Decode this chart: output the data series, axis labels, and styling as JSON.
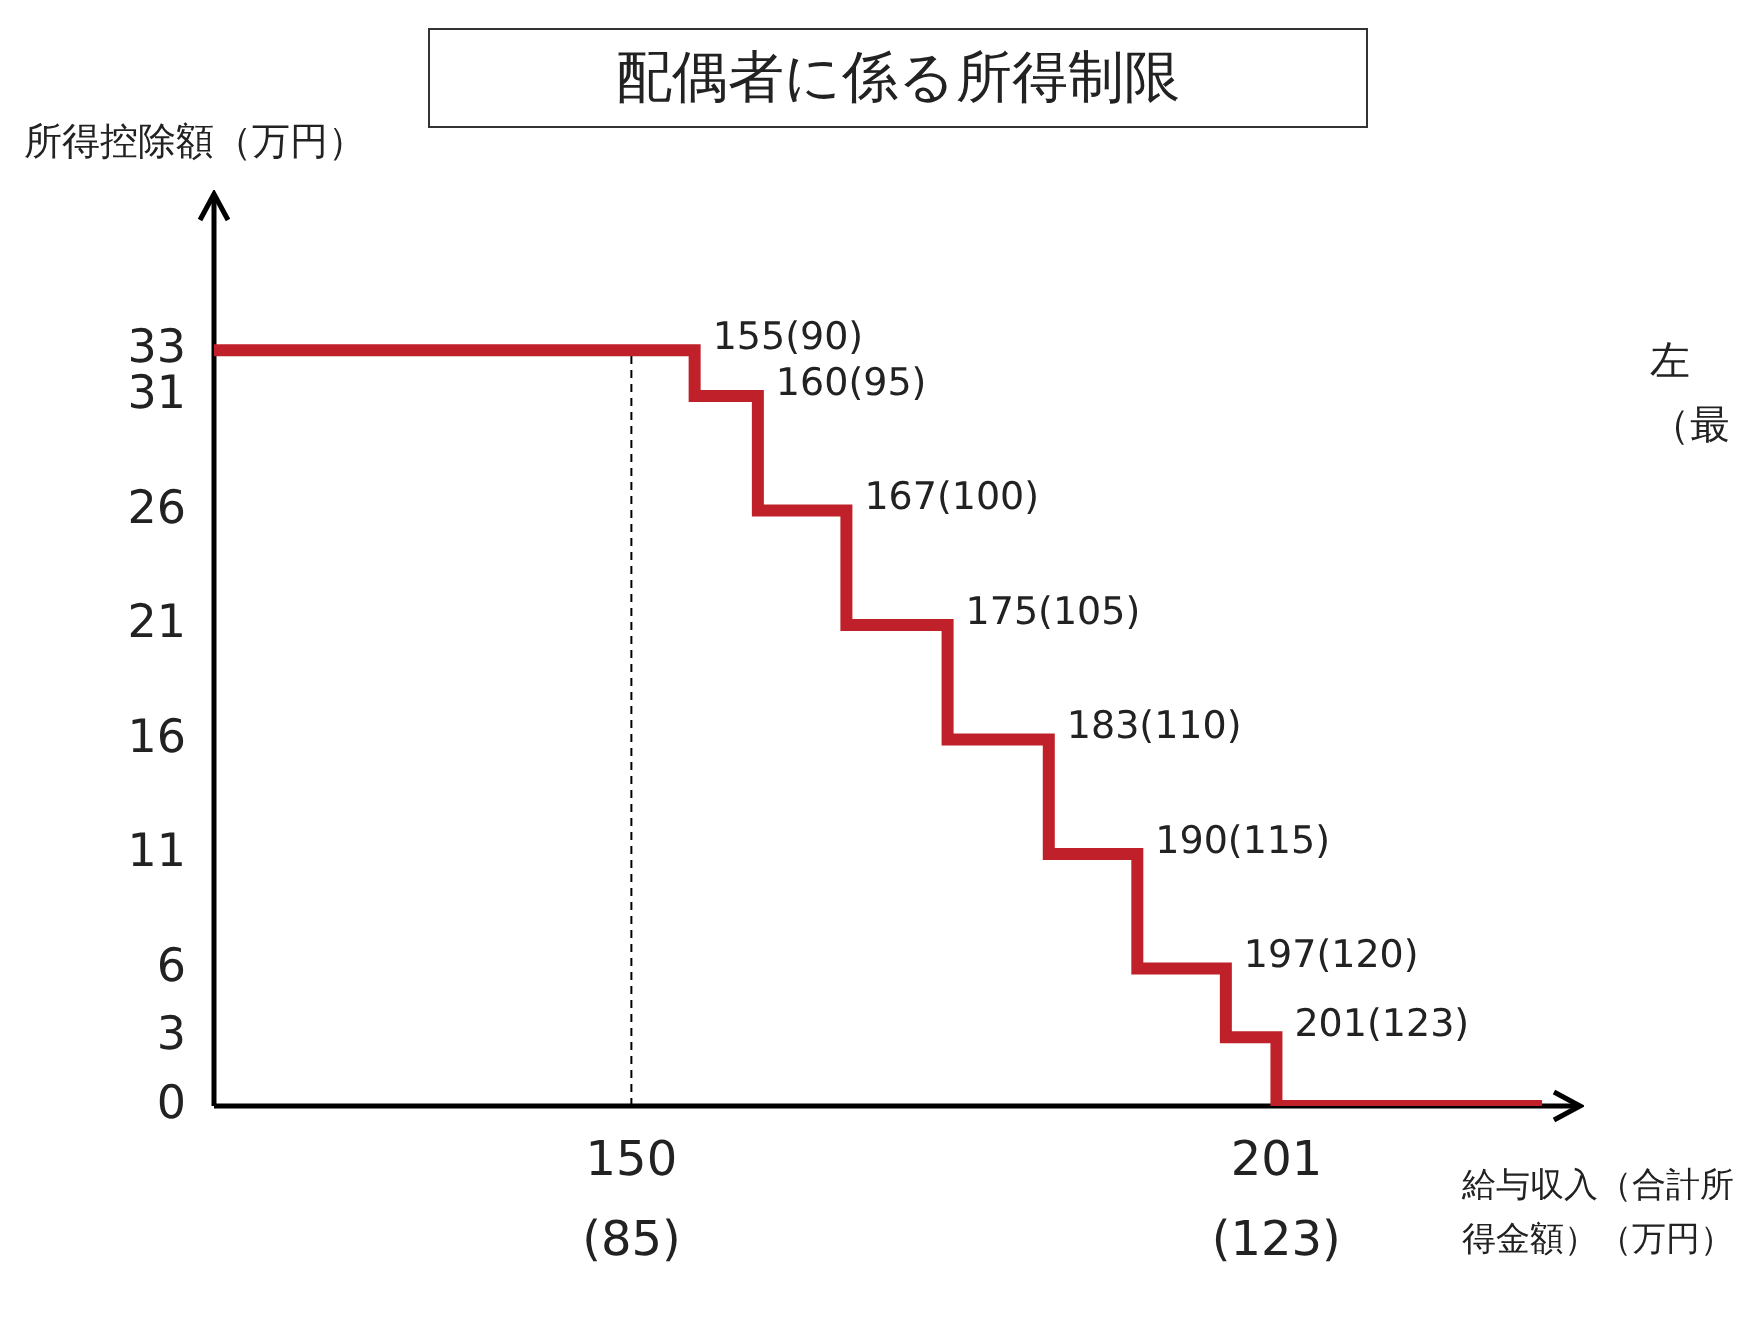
{
  "chart_data": {
    "type": "step",
    "title": "配偶者に係る所得制限",
    "ylabel": "所得控除額（万円）",
    "xlabel": "給与収入（合計所得金額）（万円）",
    "series": [
      {
        "color": "#c0202a",
        "x": [
          117,
          155,
          160,
          167,
          175,
          183,
          190,
          197,
          201,
          222
        ],
        "values": [
          33,
          31,
          26,
          21,
          16,
          11,
          6,
          3,
          0,
          0
        ]
      }
    ],
    "xlim": [
      117,
      225
    ],
    "xticks": [
      150,
      201
    ],
    "x2lim": [
      60.4,
      140.9
    ],
    "x2ticks": [
      {
        "value": 85,
        "label": "(85)"
      },
      {
        "value": 123,
        "label": "(123)"
      }
    ],
    "ylim": [
      0,
      40
    ],
    "yticks": [
      0,
      3,
      6,
      11,
      16,
      21,
      26,
      31,
      33
    ],
    "ref_lines": [
      {
        "axis": "x",
        "value": 150,
        "color": "#000000",
        "line_style": "dashed"
      }
    ],
    "annotations": [
      {
        "text": "155(90)",
        "x": 155,
        "y": 33
      },
      {
        "text": "160(95)",
        "x": 160,
        "y": 31
      },
      {
        "text": "167(100)",
        "x": 167,
        "y": 26
      },
      {
        "text": "175(105)",
        "x": 175,
        "y": 21
      },
      {
        "text": "183(110)",
        "x": 183,
        "y": 16
      },
      {
        "text": "190(115)",
        "x": 190,
        "y": 11
      },
      {
        "text": "197(120)",
        "x": 197,
        "y": 6
      },
      {
        "text": "201(123)",
        "x": 201,
        "y": 3
      },
      "左",
      "（最"
    ],
    "grid": false,
    "legend": false,
    "marker": "none",
    "line_style": "solid"
  }
}
